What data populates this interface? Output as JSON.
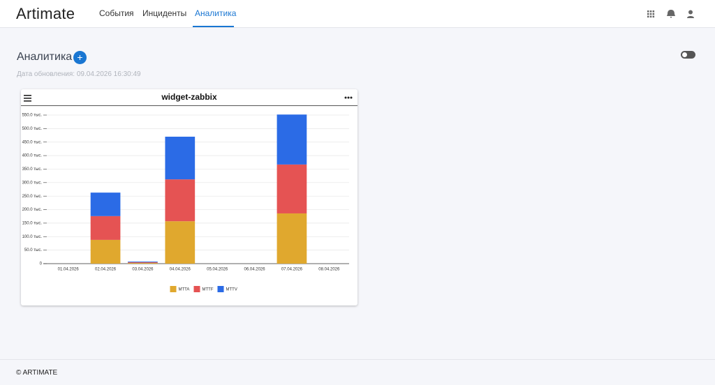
{
  "header": {
    "logo": "Artimate",
    "nav": [
      "События",
      "Инциденты",
      "Аналитика"
    ]
  },
  "page": {
    "title": "Аналитика",
    "updated": "Дата обновления: 09.04.2026 16:30:49"
  },
  "widget": {
    "title": "widget-zabbix"
  },
  "chart_data": {
    "type": "bar",
    "stacked": true,
    "categories": [
      "01.04.2026",
      "02.04.2026",
      "03.04.2026",
      "04.04.2026",
      "05.04.2026",
      "06.04.2026",
      "07.04.2026",
      "08.04.2026"
    ],
    "series": [
      {
        "name": "MTTA",
        "color": "#e0a82e",
        "values": [
          0,
          88000,
          2500,
          157000,
          0,
          0,
          186000,
          0
        ]
      },
      {
        "name": "MTTF",
        "color": "#e55353",
        "values": [
          0,
          88000,
          2500,
          155000,
          0,
          0,
          181000,
          0
        ]
      },
      {
        "name": "MTTV",
        "color": "#2b6be6",
        "values": [
          0,
          87000,
          2500,
          158000,
          0,
          0,
          185000,
          0
        ]
      }
    ],
    "ylim": [
      0,
      550000
    ],
    "yticks": [
      0,
      {
        "value": 50000,
        "label": "50.0 тыс."
      },
      {
        "value": 100000,
        "label": "100.0 тыс."
      },
      {
        "value": 150000,
        "label": "150.0 тыс."
      },
      {
        "value": 200000,
        "label": "200.0 тыс."
      },
      {
        "value": 250000,
        "label": "250.0 тыс."
      },
      {
        "value": 300000,
        "label": "300.0 тыс."
      },
      {
        "value": 350000,
        "label": "350.0 тыс."
      },
      {
        "value": 400000,
        "label": "400.0 тыс."
      },
      {
        "value": 450000,
        "label": "450.0 тыс."
      },
      {
        "value": 500000,
        "label": "500.0 тыс."
      },
      {
        "value": 550000,
        "label": "550.0 тыс."
      }
    ],
    "grid": true,
    "legend": "bottom"
  },
  "footer": {
    "copyright": "© ARTIMATE"
  }
}
